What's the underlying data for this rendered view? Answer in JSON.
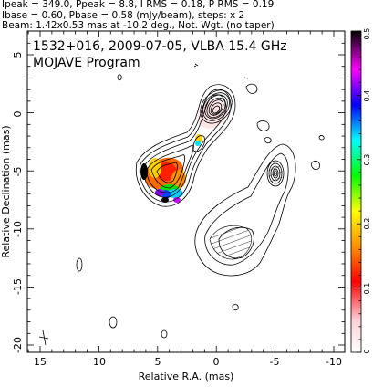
{
  "header": {
    "lines": [
      "Ipeak = 349.0, Ppeak = 8.8, I RMS = 0.18, P RMS = 0.19",
      "Ibase = 0.60, Pbase = 0.58 (mJy/beam), steps: x 2",
      "Beam: 1.42x0.53 mas at -10.2 deg., Not. Wgt. (no taper)"
    ]
  },
  "plot": {
    "title": "1532+016, 2009-07-05, VLBA 15.4 GHz",
    "subtitle": "MOJAVE Program",
    "xlabel": "Relative R.A. (mas)",
    "ylabel": "Relative Declination (mas)",
    "x_ticks": [
      "15",
      "10",
      "5",
      "0",
      "-5",
      "-10"
    ],
    "y_ticks": [
      "5",
      "0",
      "-5",
      "-10",
      "-15",
      "-20"
    ],
    "xlim": [
      16,
      -11
    ],
    "ylim": [
      -20.5,
      6
    ]
  },
  "colorbar": {
    "ticks": [
      "0.5",
      "0.4",
      "0.3",
      "0.2",
      "0.1",
      "0"
    ],
    "range": [
      0,
      0.5
    ],
    "colors": [
      "#ffffff",
      "#ff0000",
      "#ffa000",
      "#ffff00",
      "#00ff00",
      "#00ffff",
      "#0000ff",
      "#ff00ff",
      "#000000"
    ]
  }
}
